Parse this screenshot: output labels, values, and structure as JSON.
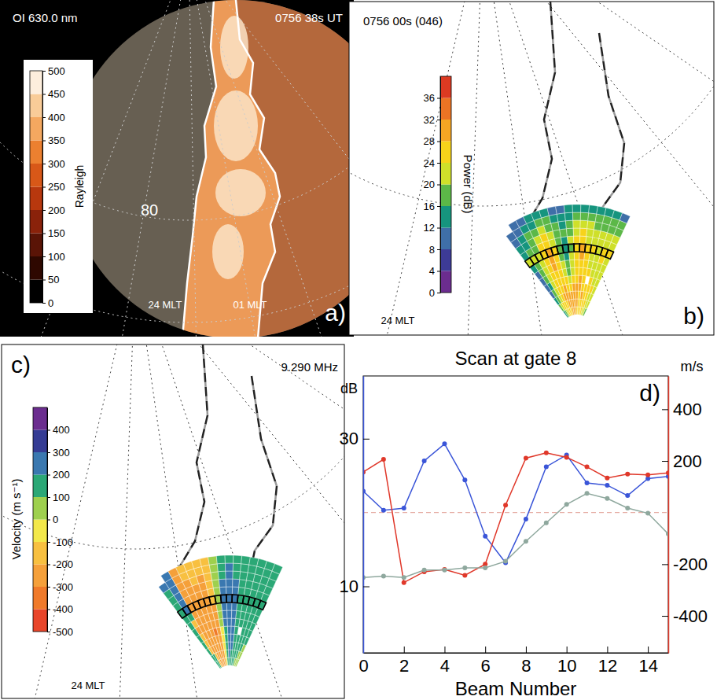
{
  "chart_data": [
    {
      "type": "image",
      "label": "a)",
      "title": "OI 630.0 nm",
      "subtitle": "0756 38s UT",
      "annotations": [
        "80",
        "24 MLT",
        "01 MLT"
      ],
      "colorbar": {
        "title": "Rayleigh",
        "range": [
          0,
          500
        ],
        "ticks": [
          0,
          50,
          100,
          150,
          200,
          250,
          300,
          350,
          400,
          450,
          500
        ]
      }
    },
    {
      "type": "heatmap",
      "label": "b)",
      "title": "0756 00s (046)",
      "annotations": [
        "24 MLT"
      ],
      "scan_gate": 8,
      "cells": [
        [
          14,
          18,
          22,
          24,
          26,
          27,
          28,
          29,
          28,
          27,
          26,
          25,
          24,
          22,
          20,
          18
        ],
        [
          16,
          20,
          24,
          26,
          27,
          29,
          30,
          31,
          30,
          28,
          27,
          26,
          25,
          24,
          22,
          20
        ],
        [
          12,
          18,
          23,
          26,
          28,
          30,
          31,
          30,
          29,
          28,
          27,
          28,
          26,
          24,
          23,
          21
        ],
        [
          10,
          17,
          22,
          25,
          27,
          29,
          27,
          26,
          28,
          29,
          28,
          27,
          26,
          25,
          24,
          22
        ],
        [
          8,
          15,
          21,
          24,
          26,
          25,
          24,
          22,
          25,
          27,
          28,
          26,
          null,
          24,
          23,
          22
        ],
        [
          9,
          16,
          20,
          24,
          27,
          26,
          22,
          19,
          23,
          26,
          27,
          25,
          24,
          23,
          22,
          21
        ],
        [
          11,
          18,
          21,
          25,
          28,
          25,
          20,
          16,
          21,
          25,
          27,
          24,
          23,
          22,
          23,
          22
        ],
        [
          12,
          19,
          20,
          26,
          29,
          24,
          18,
          14,
          20,
          26,
          28,
          24,
          23,
          22,
          24,
          23
        ],
        [
          23,
          20,
          21,
          27,
          29,
          24,
          17,
          13,
          19,
          26,
          28,
          24,
          24,
          22,
          25,
          25
        ],
        [
          14,
          17,
          19,
          25,
          27,
          23,
          18,
          15,
          20,
          25,
          26,
          23,
          22,
          21,
          23,
          22
        ],
        [
          12,
          15,
          18,
          22,
          24,
          21,
          17,
          16,
          19,
          23,
          24,
          22,
          21,
          20,
          21,
          20
        ],
        [
          10,
          13,
          16,
          19,
          21,
          19,
          16,
          15,
          18,
          21,
          22,
          20,
          19,
          18,
          19,
          18
        ],
        [
          8,
          11,
          13,
          15,
          17,
          16,
          14,
          13,
          15,
          17,
          19,
          18,
          17,
          16,
          17,
          16
        ],
        [
          null,
          9,
          10,
          12,
          13,
          12,
          11,
          10,
          12,
          14,
          15,
          14,
          13,
          12,
          12,
          11
        ]
      ],
      "colorbar": {
        "title": "Power (dB)",
        "range": [
          0,
          40
        ],
        "ticks": [
          0,
          4,
          8,
          12,
          16,
          20,
          24,
          28,
          32,
          36
        ]
      }
    },
    {
      "type": "heatmap",
      "label": "c)",
      "title": "9.290 MHz",
      "annotations": [
        "24 MLT"
      ],
      "scan_gate": 8,
      "cells": [
        [
          150,
          120,
          -180,
          -220,
          -240,
          -250,
          -230,
          -60,
          150,
          180,
          170,
          140,
          110,
          90,
          80,
          70
        ],
        [
          170,
          140,
          -200,
          -240,
          -260,
          -270,
          -250,
          -80,
          160,
          200,
          190,
          150,
          120,
          100,
          90,
          80
        ],
        [
          180,
          -150,
          -230,
          -260,
          -280,
          -290,
          -260,
          -60,
          170,
          210,
          200,
          160,
          130,
          110,
          100,
          90
        ],
        [
          190,
          -180,
          -250,
          -270,
          -290,
          -300,
          -270,
          -40,
          180,
          220,
          210,
          170,
          140,
          120,
          110,
          100
        ],
        [
          160,
          -200,
          -260,
          -280,
          -300,
          -310,
          -260,
          -20,
          190,
          230,
          210,
          170,
          null,
          130,
          120,
          110
        ],
        [
          140,
          -220,
          -270,
          -290,
          -300,
          -300,
          -250,
          0,
          200,
          230,
          220,
          170,
          140,
          140,
          130,
          120
        ],
        [
          150,
          -150,
          -260,
          -280,
          -290,
          -290,
          -230,
          10,
          200,
          230,
          220,
          170,
          140,
          140,
          140,
          130
        ],
        [
          160,
          100,
          -270,
          -250,
          -260,
          -270,
          -210,
          20,
          210,
          230,
          215,
          175,
          135,
          145,
          140,
          145
        ],
        [
          157,
          206,
          -271,
          -229,
          -220,
          -243,
          -200,
          29,
          211,
          231,
          214,
          177,
          134,
          149,
          146,
          154
        ],
        [
          170,
          210,
          -260,
          -230,
          -220,
          -240,
          -190,
          40,
          210,
          230,
          210,
          175,
          140,
          150,
          150,
          155
        ],
        [
          180,
          220,
          -250,
          -220,
          -210,
          -230,
          -180,
          50,
          200,
          220,
          200,
          170,
          145,
          150,
          155,
          160
        ],
        [
          190,
          230,
          -240,
          -210,
          -200,
          -220,
          -170,
          60,
          190,
          210,
          190,
          165,
          150,
          155,
          160,
          165
        ],
        [
          200,
          240,
          -230,
          -200,
          -190,
          -200,
          -160,
          70,
          180,
          200,
          180,
          160,
          150,
          160,
          165,
          170
        ],
        [
          null,
          250,
          -220,
          -190,
          -180,
          -190,
          -150,
          80,
          170,
          190,
          170,
          160,
          150,
          160,
          165,
          170
        ]
      ],
      "colorbar": {
        "title": "Velocity (m s⁻¹)",
        "range": [
          -500,
          500
        ],
        "ticks": [
          -500,
          -400,
          -300,
          -200,
          -100,
          0,
          100,
          200,
          300,
          400
        ]
      }
    },
    {
      "type": "line",
      "label": "d)",
      "title": "Scan at gate 8",
      "xlabel": "Beam Number",
      "ylabel": "dB",
      "y2label": "m/s",
      "x": [
        0,
        1,
        2,
        3,
        4,
        5,
        6,
        7,
        8,
        9,
        10,
        11,
        12,
        13,
        14,
        15
      ],
      "xlim": [
        0,
        15
      ],
      "xticks": [
        0,
        2,
        4,
        6,
        8,
        10,
        12,
        14
      ],
      "ylim": [
        1,
        38.5
      ],
      "yticks": [
        10,
        30
      ],
      "y2lim": [
        -543,
        529
      ],
      "y2ticks": [
        -400,
        -200,
        200,
        400
      ],
      "y2_reference_line": 0,
      "series": [
        {
          "color": "#3a55d8",
          "marker": "circle",
          "values": [
            22.9,
            20.3,
            20.6,
            27.0,
            29.3,
            24.4,
            16.8,
            13.2,
            19.1,
            26.2,
            27.8,
            24.0,
            23.7,
            22.3,
            24.6,
            24.9
          ]
        },
        {
          "color": "#e0382a",
          "marker": "circle",
          "axis": "y2",
          "values": [
            157,
            206,
            -271,
            -229,
            -220,
            -243,
            -200,
            29,
            211,
            231,
            214,
            177,
            134,
            149,
            146,
            154
          ]
        },
        {
          "color": "#8fa89e",
          "marker": "circle",
          "values": [
            11.2,
            11.4,
            11.2,
            12.2,
            12.2,
            12.5,
            12.5,
            13.4,
            16.1,
            18.6,
            21.1,
            22.6,
            21.9,
            20.6,
            19.9,
            17.1
          ]
        }
      ]
    }
  ]
}
